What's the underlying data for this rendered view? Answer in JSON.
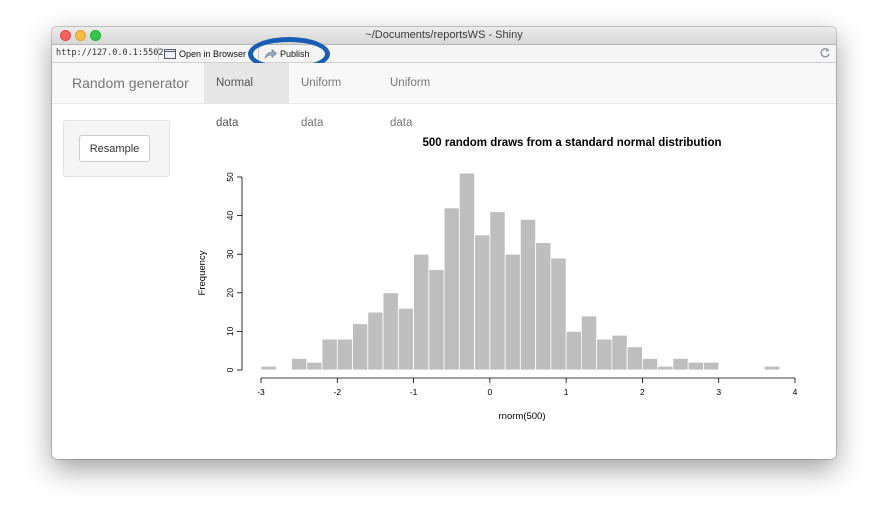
{
  "window": {
    "title": "~/Documents/reportsWS - Shiny"
  },
  "toolbar": {
    "url": "http://127.0.0.1:5502",
    "open_browser_label": "Open in Browser",
    "publish_label": "Publish",
    "icons": [
      "browser-icon",
      "publish-icon",
      "refresh-icon"
    ]
  },
  "navbar": {
    "brand": "Random generator",
    "tabs": [
      {
        "label": "Normal data",
        "active": true
      },
      {
        "label": "Uniform data",
        "active": false
      },
      {
        "label": "Uniform data",
        "active": false
      }
    ]
  },
  "sidebar": {
    "resample_label": "Resample"
  },
  "colors": {
    "bar_fill": "#bebebe",
    "highlight_oval": "#1a5db4"
  },
  "chart_data": {
    "type": "bar",
    "title": "500 random draws from a standard normal distribution",
    "xlabel": "rnorm(500)",
    "ylabel": "Frequency",
    "bin_width": 0.2,
    "bin_starts": [
      -3.0,
      -2.8,
      -2.6,
      -2.4,
      -2.2,
      -2.0,
      -1.8,
      -1.6,
      -1.4,
      -1.2,
      -1.0,
      -0.8,
      -0.6,
      -0.4,
      -0.2,
      0.0,
      0.2,
      0.4,
      0.6,
      0.8,
      1.0,
      1.2,
      1.4,
      1.6,
      1.8,
      2.0,
      2.2,
      2.4,
      2.6,
      2.8,
      3.0,
      3.2,
      3.4,
      3.6
    ],
    "values": [
      1,
      0,
      3,
      2,
      8,
      8,
      12,
      15,
      20,
      16,
      30,
      26,
      42,
      51,
      35,
      41,
      30,
      39,
      33,
      29,
      10,
      14,
      8,
      9,
      6,
      3,
      1,
      3,
      2,
      2,
      0,
      0,
      0,
      1
    ],
    "xlim": [
      -3,
      4
    ],
    "ylim": [
      0,
      50
    ],
    "x_ticks": [
      "-3",
      "-2",
      "-1",
      "0",
      "1",
      "2",
      "3",
      "4"
    ],
    "y_ticks": [
      "0",
      "10",
      "20",
      "30",
      "40",
      "50"
    ],
    "grid": false
  }
}
